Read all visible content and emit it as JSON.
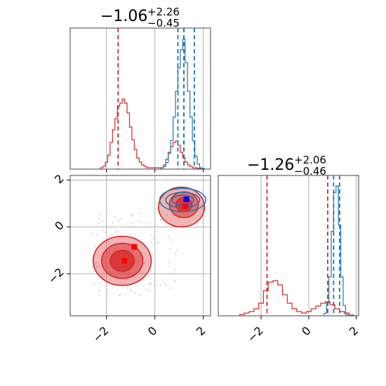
{
  "chart_data": {
    "type": "corner",
    "parameters": 2,
    "colors": {
      "primary": "#d62728",
      "secondary": "#1f77b4",
      "markers_primary": "#ff0000",
      "markers_secondary": "#0000ff",
      "grid": "#b0b0b0",
      "scatter": "#c8c8d8"
    },
    "titles": [
      {
        "value": "−1.06",
        "upper": "+2.26",
        "lower": "−0.45"
      },
      {
        "value": "−1.26",
        "upper": "+2.06",
        "lower": "−0.46"
      }
    ],
    "xlim_1": [
      -3.5,
      2.3
    ],
    "xlim_2": [
      -3.8,
      2.1
    ],
    "ylim_2d": [
      -3.8,
      2.2
    ],
    "xticks_1": [
      -2,
      0,
      2
    ],
    "xticks_2": [
      -2,
      0,
      2
    ],
    "yticks_2d": [
      -2,
      0,
      2
    ],
    "tick_labels": {
      "m2": "−2",
      "zero": "0",
      "p2": "2"
    },
    "grid": true,
    "hist1": {
      "red": {
        "bins_x": [
          -2.2,
          -2.1,
          -2.0,
          -1.9,
          -1.8,
          -1.7,
          -1.6,
          -1.5,
          -1.4,
          -1.3,
          -1.2,
          -1.1,
          -1.0,
          -0.9,
          -0.8,
          -0.7,
          -0.6,
          -0.5,
          -0.4,
          -0.3,
          0.3,
          0.4,
          0.5,
          0.6,
          0.7,
          0.8,
          0.9,
          1.0,
          1.1,
          1.2,
          1.3,
          1.4,
          1.5,
          1.6,
          1.7,
          1.8,
          1.9
        ],
        "counts": [
          0.01,
          0.02,
          0.05,
          0.1,
          0.19,
          0.28,
          0.36,
          0.45,
          0.47,
          0.5,
          0.47,
          0.4,
          0.3,
          0.21,
          0.14,
          0.08,
          0.05,
          0.03,
          0.02,
          0.01,
          0.01,
          0.03,
          0.07,
          0.12,
          0.16,
          0.19,
          0.2,
          0.17,
          0.12,
          0.08,
          0.05,
          0.03,
          0.02,
          0.01,
          0.01,
          0.005,
          0.002
        ]
      },
      "blue": {
        "bins_x": [
          0.3,
          0.4,
          0.5,
          0.6,
          0.7,
          0.8,
          0.9,
          1.0,
          1.1,
          1.2,
          1.3,
          1.4,
          1.5,
          1.6,
          1.7,
          1.8,
          1.9,
          2.0
        ],
        "counts": [
          0.01,
          0.02,
          0.05,
          0.12,
          0.22,
          0.4,
          0.6,
          0.78,
          0.92,
          1.0,
          0.82,
          0.6,
          0.4,
          0.22,
          0.1,
          0.04,
          0.01,
          0.005
        ]
      },
      "red_quantiles": [
        -1.52,
        1.2
      ],
      "blue_quantiles": [
        0.95,
        1.2,
        1.63
      ]
    },
    "hist2": {
      "red": {
        "bins_x": [
          -2.8,
          -2.6,
          -2.4,
          -2.2,
          -2.0,
          -1.8,
          -1.6,
          -1.4,
          -1.2,
          -1.0,
          -0.8,
          -0.6,
          -0.4,
          -0.2,
          0.0,
          0.2,
          0.4,
          0.6,
          0.8,
          1.0,
          1.2,
          1.4,
          1.6,
          1.8
        ],
        "counts": [
          0.01,
          0.02,
          0.03,
          0.05,
          0.09,
          0.18,
          0.24,
          0.25,
          0.22,
          0.15,
          0.09,
          0.05,
          0.03,
          0.02,
          0.03,
          0.05,
          0.07,
          0.09,
          0.1,
          0.08,
          0.05,
          0.03,
          0.02,
          0.005
        ]
      },
      "blue": {
        "bins_x": [
          0.7,
          0.8,
          0.9,
          1.0,
          1.1,
          1.2,
          1.3,
          1.4,
          1.5,
          1.6
        ],
        "counts": [
          0.02,
          0.1,
          0.3,
          0.65,
          0.95,
          1.0,
          0.7,
          0.3,
          0.08,
          0.01
        ]
      },
      "red_quantiles": [
        -1.75,
        0.8
      ],
      "blue_quantiles": [
        1.05,
        1.3
      ]
    },
    "contours_red": [
      {
        "cx": -1.35,
        "cy": -1.45,
        "rx": 1.2,
        "ry": 1.05,
        "alpha": 0.35
      },
      {
        "cx": -1.35,
        "cy": -1.45,
        "rx": 0.85,
        "ry": 0.75,
        "alpha": 0.5
      },
      {
        "cx": -1.35,
        "cy": -1.45,
        "rx": 0.5,
        "ry": 0.45,
        "alpha": 0.75
      },
      {
        "cx": 1.1,
        "cy": 0.85,
        "rx": 0.95,
        "ry": 0.85,
        "alpha": 0.35
      },
      {
        "cx": 1.2,
        "cy": 0.95,
        "rx": 0.6,
        "ry": 0.55,
        "alpha": 0.5
      },
      {
        "cx": 1.2,
        "cy": 0.95,
        "rx": 0.33,
        "ry": 0.3,
        "alpha": 0.75
      }
    ],
    "contours_blue": [
      {
        "cx": 1.15,
        "cy": 1.15,
        "rx": 0.95,
        "ry": 0.5
      },
      {
        "cx": 1.15,
        "cy": 1.15,
        "rx": 0.7,
        "ry": 0.33
      },
      {
        "cx": 1.15,
        "cy": 1.15,
        "rx": 0.45,
        "ry": 0.2
      }
    ],
    "markers": [
      {
        "x": -1.26,
        "y": -1.45,
        "color": "#ff0000"
      },
      {
        "x": -0.85,
        "y": -0.85,
        "color": "#ff0000"
      },
      {
        "x": 1.25,
        "y": 0.88,
        "color": "#ff0000"
      },
      {
        "x": 1.3,
        "y": 1.18,
        "color": "#0000ff"
      }
    ]
  }
}
